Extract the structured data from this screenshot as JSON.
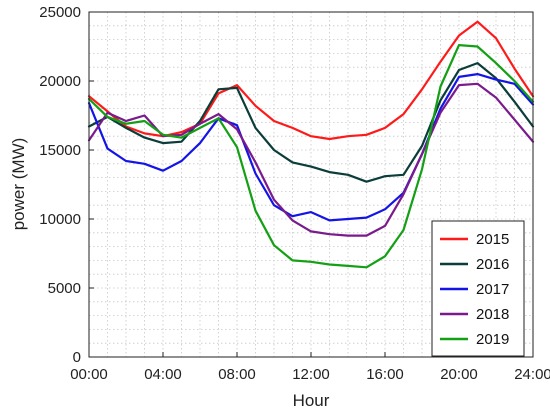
{
  "chart_data": {
    "type": "line",
    "xlabel": "Hour",
    "ylabel": "power (MW)",
    "x": [
      0,
      1,
      2,
      3,
      4,
      5,
      6,
      7,
      8,
      9,
      10,
      11,
      12,
      13,
      14,
      15,
      16,
      17,
      18,
      19,
      20,
      21,
      22,
      23,
      24
    ],
    "xlim": [
      0,
      24
    ],
    "ylim": [
      0,
      25000
    ],
    "xticks": [
      0,
      4,
      8,
      12,
      16,
      20,
      24
    ],
    "xtick_labels": [
      "00:00",
      "04:00",
      "08:00",
      "12:00",
      "16:00",
      "20:00",
      "24:00"
    ],
    "yticks": [
      0,
      5000,
      10000,
      15000,
      20000,
      25000
    ],
    "ytick_labels": [
      "0",
      "5000",
      "10000",
      "15000",
      "20000",
      "25000"
    ],
    "grid": "dotted, minor x every 1 hour, minor y every 1000",
    "legend_position": "bottom-right",
    "series": [
      {
        "name": "2015",
        "color": "#ff1a1a",
        "values": [
          18900,
          17800,
          16700,
          16200,
          16000,
          16300,
          16900,
          19100,
          19700,
          18200,
          17100,
          16600,
          16000,
          15800,
          16000,
          16100,
          16600,
          17600,
          19400,
          21400,
          23300,
          24300,
          23100,
          20900,
          18900
        ]
      },
      {
        "name": "2016",
        "color": "#0b3d3a",
        "values": [
          16700,
          17400,
          16600,
          15900,
          15500,
          15600,
          17100,
          19400,
          19500,
          16600,
          15000,
          14100,
          13800,
          13400,
          13200,
          12700,
          13100,
          13200,
          15300,
          18600,
          20800,
          21300,
          20200,
          18500,
          16700
        ]
      },
      {
        "name": "2017",
        "color": "#1414e6",
        "values": [
          18400,
          15100,
          14200,
          14000,
          13500,
          14200,
          15500,
          17300,
          16800,
          13300,
          11000,
          10200,
          10500,
          9900,
          10000,
          10100,
          10700,
          11900,
          14700,
          18000,
          20300,
          20500,
          20100,
          19800,
          18300
        ]
      },
      {
        "name": "2018",
        "color": "#7a1a8c",
        "values": [
          15700,
          17700,
          17100,
          17500,
          16000,
          16100,
          16900,
          17600,
          16500,
          14100,
          11400,
          9900,
          9100,
          8900,
          8800,
          8800,
          9500,
          11800,
          14700,
          17700,
          19700,
          19800,
          18800,
          17200,
          15600
        ]
      },
      {
        "name": "2019",
        "color": "#14a014",
        "values": [
          18700,
          17400,
          16900,
          17100,
          16100,
          15900,
          16600,
          17300,
          15200,
          10600,
          8100,
          7000,
          6900,
          6700,
          6600,
          6500,
          7300,
          9200,
          13600,
          19600,
          22600,
          22500,
          21300,
          20000,
          18500
        ]
      }
    ]
  }
}
